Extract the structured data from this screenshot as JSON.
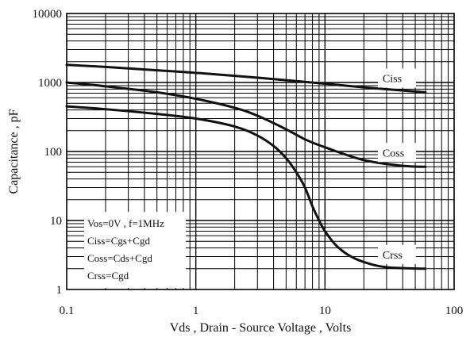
{
  "chart_data": {
    "type": "line",
    "title": "",
    "xlabel": "Vds , Drain - Source Voltage , Volts",
    "ylabel": "Capacitance , pF",
    "xscale": "log",
    "yscale": "log",
    "xlim": [
      0.1,
      100
    ],
    "ylim": [
      1,
      10000
    ],
    "grid": true,
    "x_ticks": [
      {
        "value": 0.1,
        "label": "0.1"
      },
      {
        "value": 1,
        "label": "1"
      },
      {
        "value": 10,
        "label": "10"
      },
      {
        "value": 100,
        "label": "100"
      }
    ],
    "y_ticks": [
      {
        "value": 1,
        "label": "1"
      },
      {
        "value": 10,
        "label": "10"
      },
      {
        "value": 100,
        "label": "100"
      },
      {
        "value": 1000,
        "label": "1000"
      },
      {
        "value": 10000,
        "label": "10000"
      }
    ],
    "annotation_lines": [
      "Vos=0V , f=1MHz",
      "Ciss=Cgs+Cgd",
      "Coss=Cds+Cgd",
      "Crss=Cgd"
    ],
    "series": [
      {
        "name": "Ciss",
        "x": [
          0.1,
          0.2,
          0.5,
          1,
          2,
          5,
          10,
          20,
          60
        ],
        "y": [
          1800,
          1680,
          1500,
          1380,
          1250,
          1080,
          960,
          850,
          720
        ]
      },
      {
        "name": "Coss",
        "x": [
          0.1,
          0.2,
          0.5,
          1,
          2,
          3,
          5,
          7,
          10,
          20,
          40,
          60
        ],
        "y": [
          1000,
          880,
          720,
          580,
          430,
          330,
          210,
          150,
          115,
          75,
          62,
          60
        ]
      },
      {
        "name": "Crss",
        "x": [
          0.1,
          0.2,
          0.5,
          1,
          2,
          3,
          4,
          5,
          6,
          7,
          8,
          9,
          10,
          12,
          15,
          20,
          30,
          60
        ],
        "y": [
          450,
          410,
          350,
          300,
          230,
          170,
          120,
          80,
          50,
          30,
          16,
          10,
          7,
          4.5,
          3.2,
          2.5,
          2.1,
          2.0
        ]
      }
    ]
  }
}
